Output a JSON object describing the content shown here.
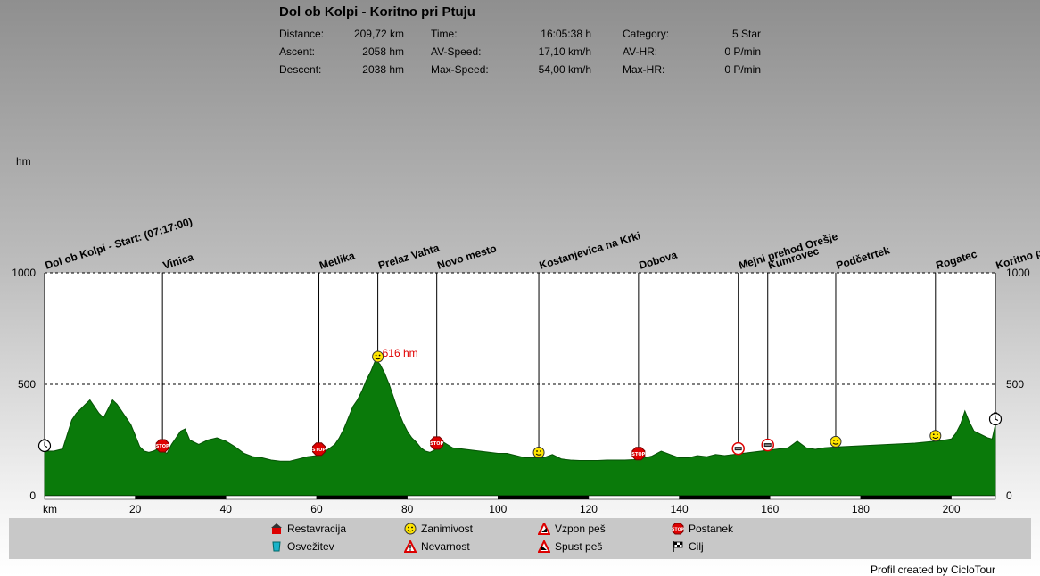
{
  "title": "Dol ob Kolpi - Koritno pri Ptuju",
  "stats": {
    "distance_label": "Distance:",
    "distance": "209,72 km",
    "ascent_label": "Ascent:",
    "ascent": "2058 hm",
    "descent_label": "Descent:",
    "descent": "2038 hm",
    "time_label": "Time:",
    "time": "16:05:38 h",
    "avspeed_label": "AV-Speed:",
    "avspeed": "17,10 km/h",
    "maxspeed_label": "Max-Speed:",
    "maxspeed": "54,00 km/h",
    "category_label": "Category:",
    "category": "5 Star",
    "avhr_label": "AV-HR:",
    "avhr": "0 P/min",
    "maxhr_label": "Max-HR:",
    "maxhr": "0 P/min"
  },
  "chart_data": {
    "type": "area",
    "ylabel": "hm",
    "xlabel": "km",
    "xlim": [
      0,
      209.72
    ],
    "ylim": [
      0,
      1000
    ],
    "x_ticks": [
      20,
      40,
      60,
      80,
      100,
      120,
      140,
      160,
      180,
      200
    ],
    "y_ticks": [
      0,
      500,
      1000
    ],
    "fill_color": "#0a7a0a",
    "grid": "dashed at 500 and 1000",
    "max_label": "616 hm",
    "max_point": {
      "x": 73.5,
      "y": 616
    },
    "series": [
      {
        "x": [
          0,
          2,
          4,
          6,
          7,
          8,
          9,
          10,
          11,
          12,
          13,
          14,
          15,
          16,
          17,
          18,
          19,
          20,
          21,
          22,
          23,
          24,
          25,
          26,
          27,
          28,
          29,
          30,
          31,
          32,
          34,
          36,
          38,
          40,
          42,
          44,
          46,
          48,
          50,
          52,
          54,
          56,
          58,
          60,
          62,
          64,
          65,
          66,
          67,
          68,
          69,
          70,
          71,
          72,
          73,
          74,
          75,
          76,
          77,
          78,
          79,
          80,
          81,
          82,
          83,
          84,
          85,
          86,
          87,
          88,
          90,
          92,
          94,
          96,
          98,
          100,
          102,
          104,
          106,
          108,
          110,
          112,
          114,
          116,
          118,
          120,
          122,
          124,
          126,
          128,
          130,
          132,
          134,
          136,
          138,
          140,
          142,
          144,
          146,
          148,
          150,
          152,
          154,
          156,
          158,
          160,
          162,
          164,
          166,
          168,
          170,
          172,
          174,
          176,
          178,
          180,
          182,
          184,
          186,
          188,
          190,
          192,
          194,
          196,
          198,
          200,
          201,
          202,
          203,
          204,
          205,
          206,
          207,
          208,
          209,
          209.72
        ],
        "y": [
          200,
          200,
          210,
          340,
          370,
          390,
          410,
          430,
          400,
          370,
          350,
          390,
          430,
          410,
          380,
          350,
          320,
          270,
          220,
          200,
          195,
          200,
          210,
          200,
          190,
          230,
          260,
          290,
          300,
          250,
          230,
          250,
          260,
          245,
          220,
          190,
          175,
          170,
          160,
          155,
          155,
          165,
          175,
          180,
          200,
          230,
          260,
          300,
          350,
          400,
          430,
          470,
          520,
          560,
          610,
          590,
          550,
          500,
          440,
          380,
          330,
          290,
          260,
          240,
          215,
          200,
          195,
          205,
          220,
          240,
          215,
          210,
          205,
          200,
          195,
          190,
          190,
          180,
          170,
          170,
          170,
          185,
          165,
          160,
          158,
          158,
          158,
          160,
          160,
          160,
          162,
          168,
          178,
          200,
          185,
          170,
          170,
          180,
          175,
          185,
          180,
          185,
          190,
          195,
          200,
          205,
          210,
          215,
          245,
          215,
          208,
          215,
          218,
          220,
          222,
          224,
          226,
          228,
          230,
          232,
          234,
          236,
          240,
          244,
          248,
          255,
          280,
          320,
          380,
          330,
          290,
          280,
          270,
          260,
          255,
          320
        ]
      }
    ],
    "waypoints": [
      {
        "name": "Dol ob Kolpi - Start: (07:17:00)",
        "km": 0,
        "symbol": "clock"
      },
      {
        "name": "Vinica",
        "km": 26,
        "symbol": "stop"
      },
      {
        "name": "Metlika",
        "km": 60.5,
        "symbol": "stop"
      },
      {
        "name": "Prelaz Vahta",
        "km": 73.5,
        "symbol": "smiley"
      },
      {
        "name": "Novo mesto",
        "km": 86.5,
        "symbol": "stop"
      },
      {
        "name": "Kostanjevica na Krki",
        "km": 109,
        "symbol": "smiley"
      },
      {
        "name": "Dobova",
        "km": 131,
        "symbol": "stop"
      },
      {
        "name": "Mejni prehod Orešje",
        "km": 153,
        "symbol": "border"
      },
      {
        "name": "Kumrovec",
        "km": 159.5,
        "symbol": "border"
      },
      {
        "name": "Podčetrtek",
        "km": 174.5,
        "symbol": "smiley"
      },
      {
        "name": "Rogatec",
        "km": 196.5,
        "symbol": "smiley"
      },
      {
        "name": "Koritno pri Ptuju",
        "km": 209.72,
        "symbol": "clock"
      }
    ]
  },
  "legend": [
    {
      "label": "Restavracija",
      "icon": "restaurant-icon"
    },
    {
      "label": "Osvežitev",
      "icon": "refreshment-icon"
    },
    {
      "label": "Zanimivost",
      "icon": "smiley-icon"
    },
    {
      "label": "Nevarnost",
      "icon": "danger-icon"
    },
    {
      "label": "Vzpon peš",
      "icon": "climb-walk-icon"
    },
    {
      "label": "Spust peš",
      "icon": "descent-walk-icon"
    },
    {
      "label": "Postanek",
      "icon": "stop-icon"
    },
    {
      "label": "Cilj",
      "icon": "finish-flag-icon"
    }
  ],
  "credit": "Profil created by CicloTour"
}
